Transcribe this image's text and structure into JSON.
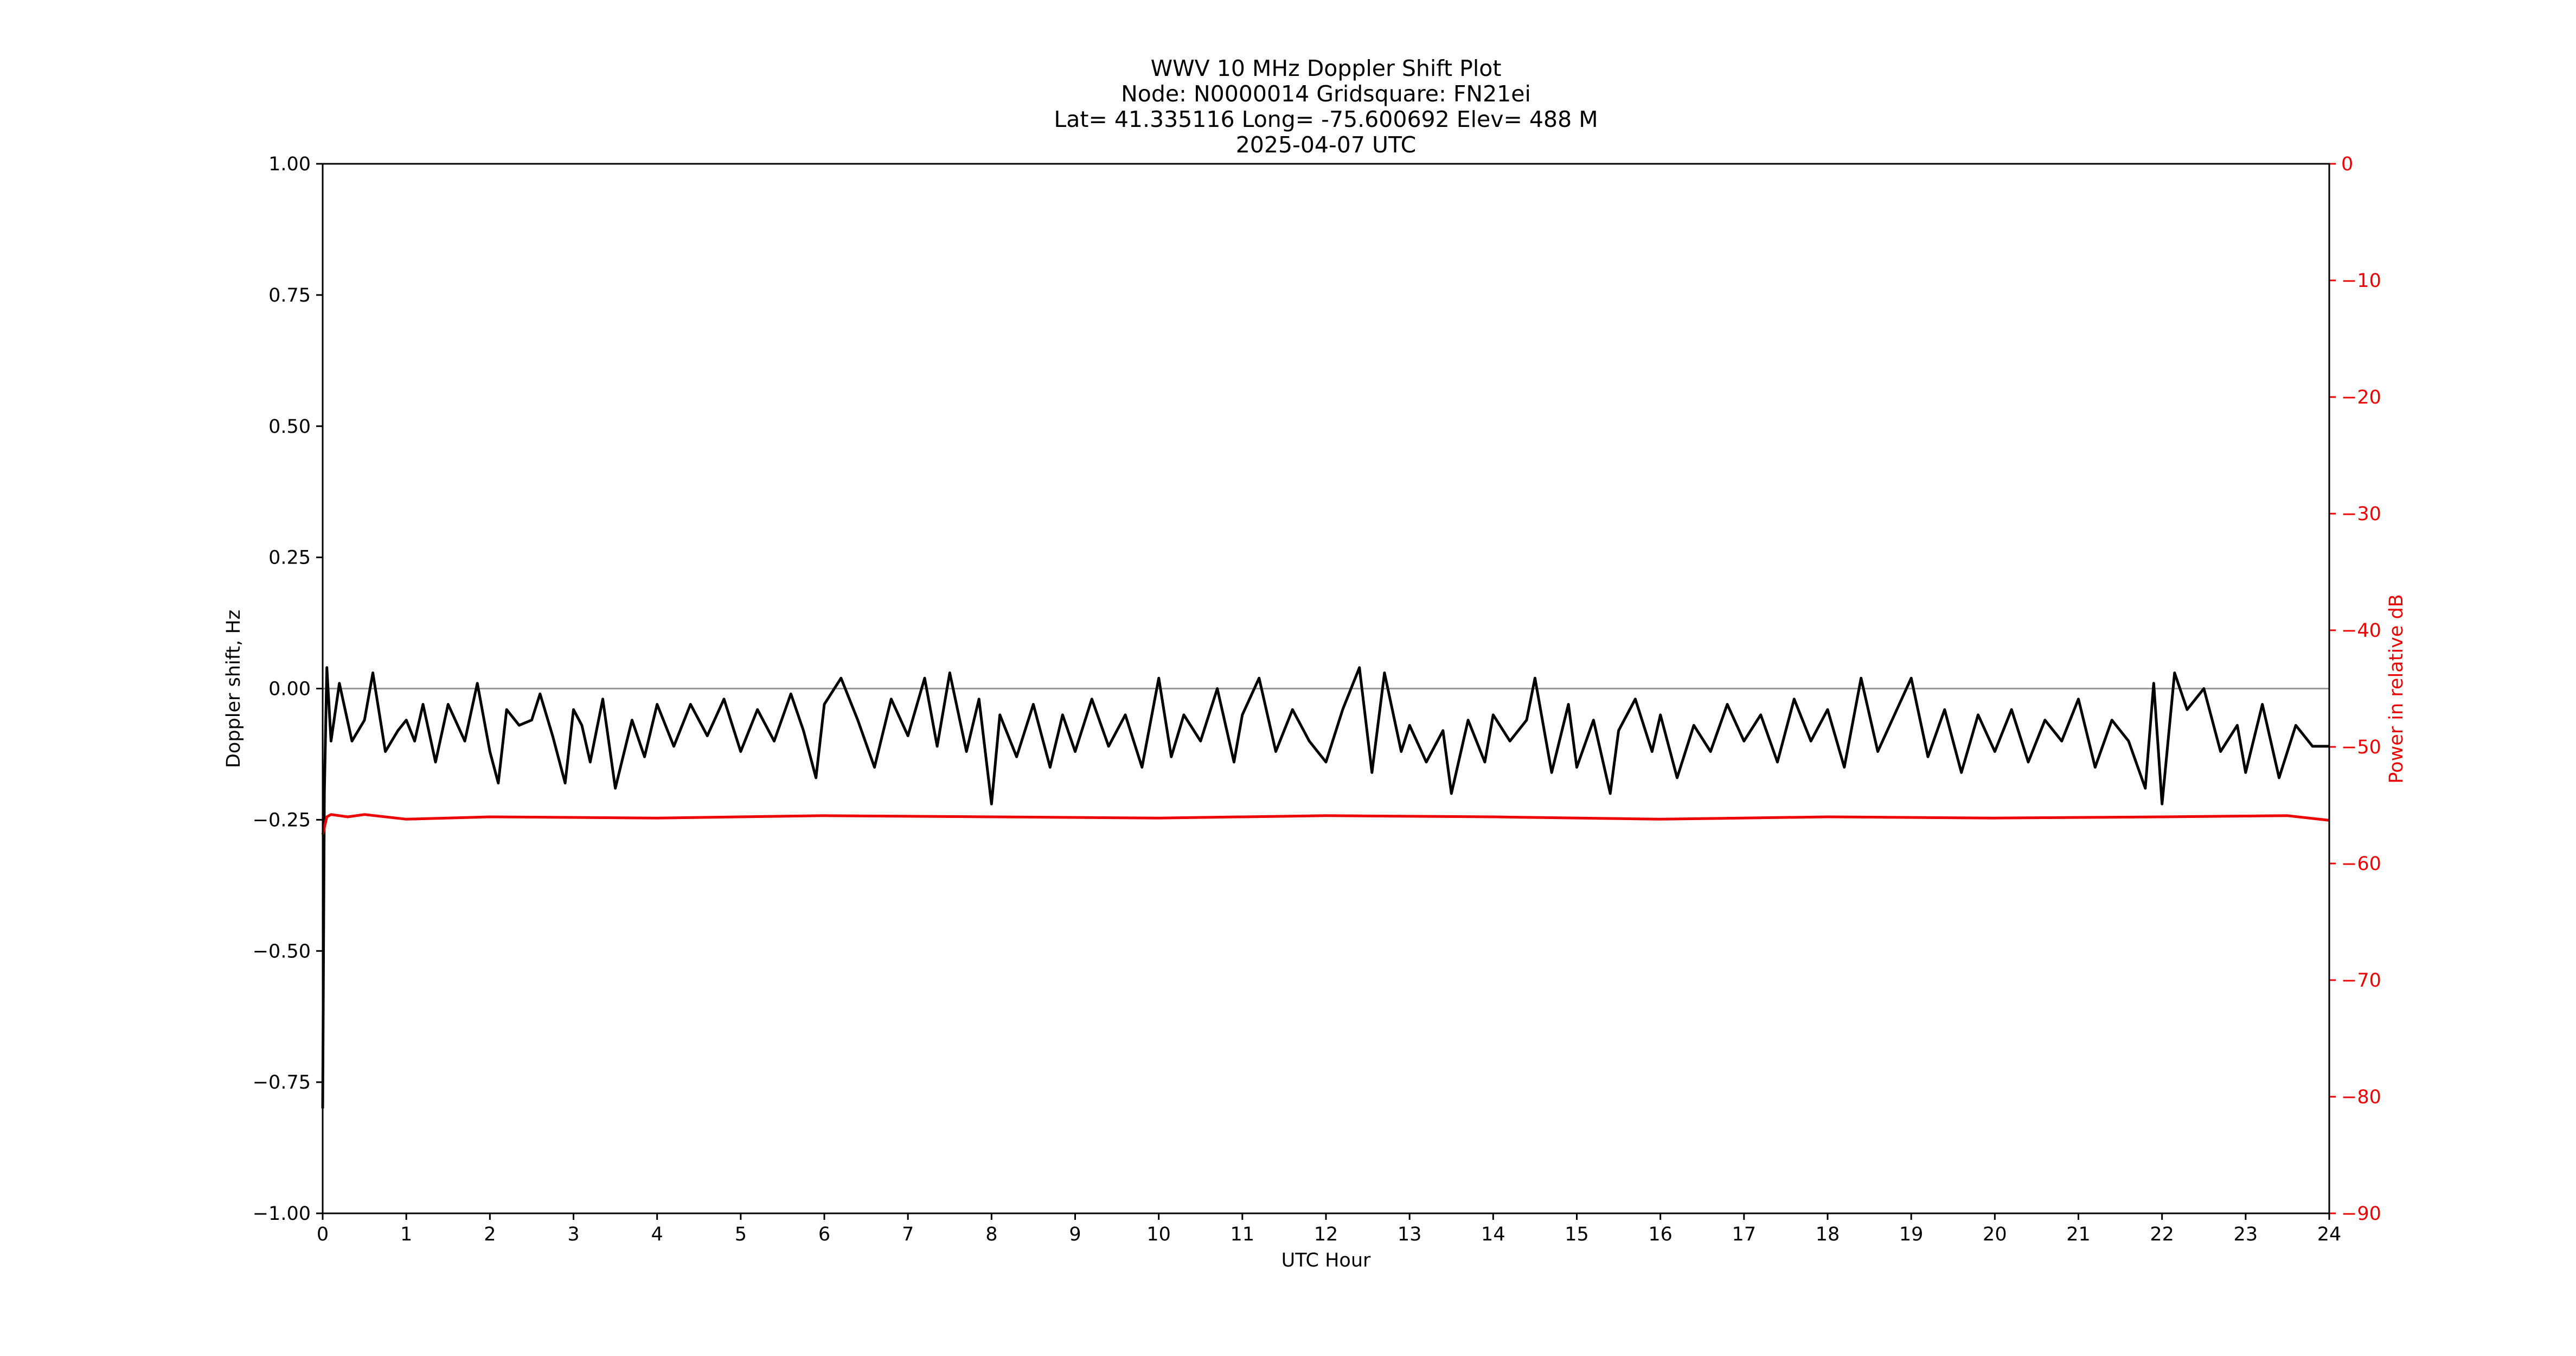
{
  "chart_data": {
    "type": "line",
    "title_lines": [
      "WWV 10 MHz Doppler Shift Plot",
      "Node:  N0000014     Gridsquare:  FN21ei",
      "Lat= 41.335116    Long= -75.600692    Elev= 488 M",
      "2025-04-07  UTC"
    ],
    "xlabel": "UTC Hour",
    "ylabel": "Doppler shift, Hz",
    "y2label": "Power in relative dB",
    "xlim": [
      0,
      24
    ],
    "ylim": [
      -1.0,
      1.0
    ],
    "y2lim": [
      -90,
      0
    ],
    "xticks": [
      "0",
      "1",
      "2",
      "3",
      "4",
      "5",
      "6",
      "7",
      "8",
      "9",
      "10",
      "11",
      "12",
      "13",
      "14",
      "15",
      "16",
      "17",
      "18",
      "19",
      "20",
      "21",
      "22",
      "23",
      "24"
    ],
    "yticks": [
      "1.00",
      "0.75",
      "0.50",
      "0.25",
      "0.00",
      "−0.25",
      "−0.50",
      "−0.75",
      "−1.00"
    ],
    "y2ticks": [
      "0",
      "−10",
      "−20",
      "−30",
      "−40",
      "−50",
      "−60",
      "−70",
      "−80",
      "−90"
    ],
    "reference_line_y": 0.0,
    "grid": false,
    "legend": "none",
    "series": [
      {
        "axis": "left",
        "color": "#000000",
        "description": "Doppler shift trace oscillating mostly between about -0.20 and +0.03 Hz, with an initial dip to about -0.8 Hz at hour 0",
        "x": [
          0.0,
          0.02,
          0.05,
          0.1,
          0.2,
          0.35,
          0.5,
          0.6,
          0.75,
          0.9,
          1.0,
          1.1,
          1.2,
          1.35,
          1.5,
          1.7,
          1.85,
          2.0,
          2.1,
          2.2,
          2.35,
          2.5,
          2.6,
          2.75,
          2.9,
          3.0,
          3.1,
          3.2,
          3.35,
          3.5,
          3.7,
          3.85,
          4.0,
          4.2,
          4.4,
          4.6,
          4.8,
          5.0,
          5.2,
          5.4,
          5.6,
          5.75,
          5.9,
          6.0,
          6.2,
          6.4,
          6.6,
          6.8,
          7.0,
          7.2,
          7.35,
          7.5,
          7.7,
          7.85,
          8.0,
          8.1,
          8.3,
          8.5,
          8.7,
          8.85,
          9.0,
          9.2,
          9.4,
          9.6,
          9.8,
          10.0,
          10.15,
          10.3,
          10.5,
          10.7,
          10.9,
          11.0,
          11.2,
          11.4,
          11.6,
          11.8,
          12.0,
          12.2,
          12.4,
          12.55,
          12.7,
          12.9,
          13.0,
          13.2,
          13.4,
          13.5,
          13.7,
          13.9,
          14.0,
          14.2,
          14.4,
          14.5,
          14.7,
          14.9,
          15.0,
          15.2,
          15.4,
          15.5,
          15.7,
          15.9,
          16.0,
          16.2,
          16.4,
          16.6,
          16.8,
          17.0,
          17.2,
          17.4,
          17.6,
          17.8,
          18.0,
          18.2,
          18.4,
          18.6,
          18.8,
          19.0,
          19.2,
          19.4,
          19.6,
          19.8,
          20.0,
          20.2,
          20.4,
          20.6,
          20.8,
          21.0,
          21.2,
          21.4,
          21.6,
          21.8,
          21.9,
          22.0,
          22.15,
          22.3,
          22.5,
          22.7,
          22.9,
          23.0,
          23.2,
          23.4,
          23.6,
          23.8,
          24.0
        ],
        "y": [
          -0.8,
          -0.2,
          0.04,
          -0.1,
          0.01,
          -0.1,
          -0.06,
          0.03,
          -0.12,
          -0.08,
          -0.06,
          -0.1,
          -0.03,
          -0.14,
          -0.03,
          -0.1,
          0.01,
          -0.12,
          -0.18,
          -0.04,
          -0.07,
          -0.06,
          -0.01,
          -0.09,
          -0.18,
          -0.04,
          -0.07,
          -0.14,
          -0.02,
          -0.19,
          -0.06,
          -0.13,
          -0.03,
          -0.11,
          -0.03,
          -0.09,
          -0.02,
          -0.12,
          -0.04,
          -0.1,
          -0.01,
          -0.08,
          -0.17,
          -0.03,
          0.02,
          -0.06,
          -0.15,
          -0.02,
          -0.09,
          0.02,
          -0.11,
          0.03,
          -0.12,
          -0.02,
          -0.22,
          -0.05,
          -0.13,
          -0.03,
          -0.15,
          -0.05,
          -0.12,
          -0.02,
          -0.11,
          -0.05,
          -0.15,
          0.02,
          -0.13,
          -0.05,
          -0.1,
          0.0,
          -0.14,
          -0.05,
          0.02,
          -0.12,
          -0.04,
          -0.1,
          -0.14,
          -0.04,
          0.04,
          -0.16,
          0.03,
          -0.12,
          -0.07,
          -0.14,
          -0.08,
          -0.2,
          -0.06,
          -0.14,
          -0.05,
          -0.1,
          -0.06,
          0.02,
          -0.16,
          -0.03,
          -0.15,
          -0.06,
          -0.2,
          -0.08,
          -0.02,
          -0.12,
          -0.05,
          -0.17,
          -0.07,
          -0.12,
          -0.03,
          -0.1,
          -0.05,
          -0.14,
          -0.02,
          -0.1,
          -0.04,
          -0.15,
          0.02,
          -0.12,
          -0.05,
          0.02,
          -0.13,
          -0.04,
          -0.16,
          -0.05,
          -0.12,
          -0.04,
          -0.14,
          -0.06,
          -0.1,
          -0.02,
          -0.15,
          -0.06,
          -0.1,
          -0.19,
          0.01,
          -0.22,
          0.03,
          -0.04,
          0.0,
          -0.12,
          -0.07,
          -0.16,
          -0.03,
          -0.17,
          -0.07,
          -0.11,
          -0.11
        ]
      },
      {
        "axis": "right",
        "color": "#ee0000",
        "description": "Relative power trace, nearly flat near -56 dB with small rapid oscillation",
        "x": [
          0.0,
          0.05,
          0.1,
          0.3,
          0.5,
          1.0,
          2.0,
          4.0,
          6.0,
          8.0,
          10.0,
          12.0,
          14.0,
          16.0,
          18.0,
          20.0,
          22.0,
          23.5,
          24.0
        ],
        "y": [
          -57.5,
          -56.0,
          -55.8,
          -56.0,
          -55.8,
          -56.2,
          -56.0,
          -56.1,
          -55.9,
          -56.0,
          -56.1,
          -55.9,
          -56.0,
          -56.2,
          -56.0,
          -56.1,
          -56.0,
          -55.9,
          -56.3
        ]
      }
    ]
  }
}
